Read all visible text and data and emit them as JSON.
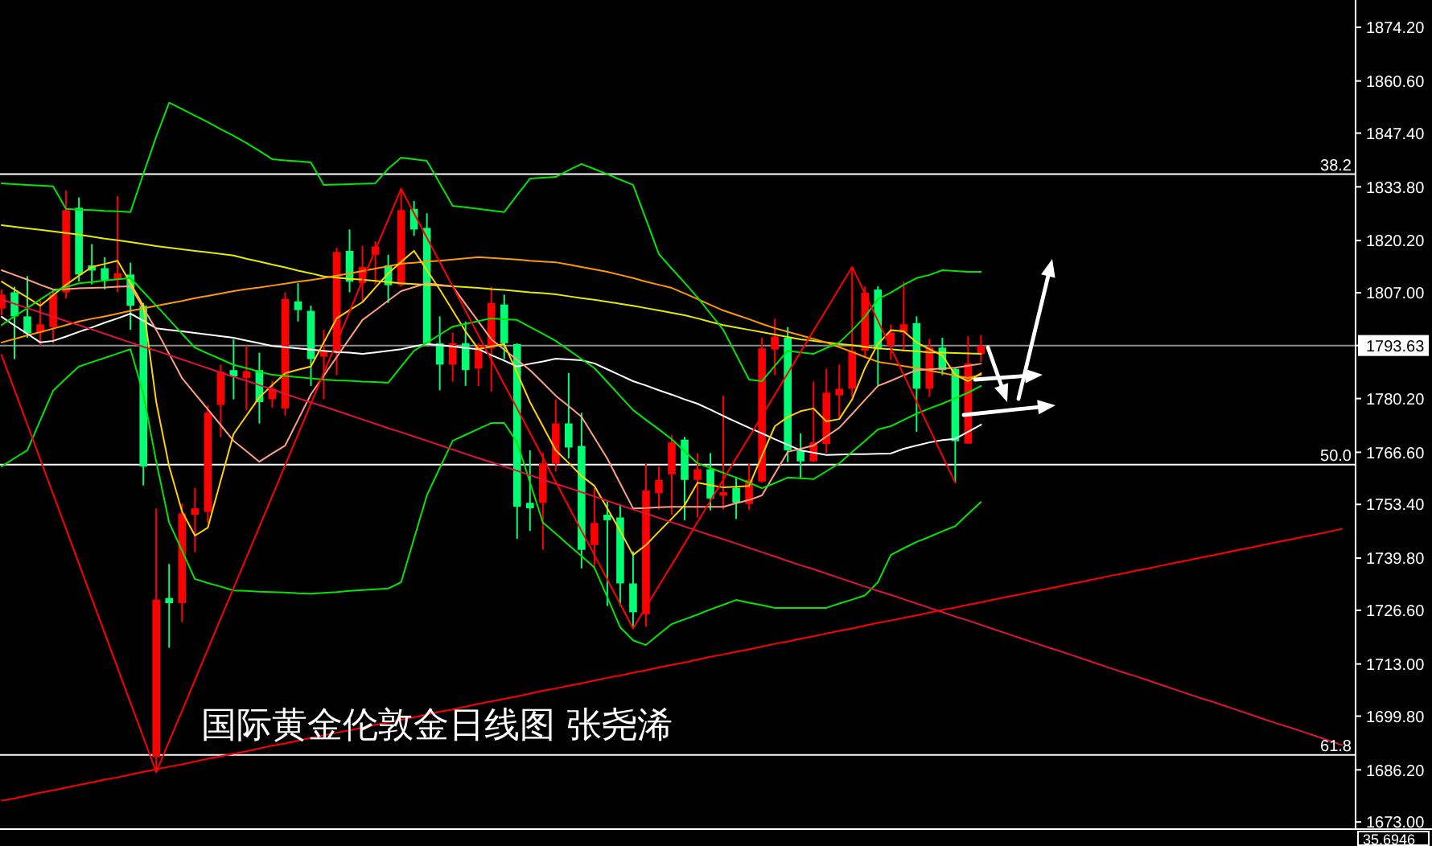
{
  "chart_data": {
    "type": "candlestick",
    "title": "国际黄金伦敦金日线图 张尧浠",
    "categories": [
      null,
      null,
      null,
      null,
      null,
      null,
      null,
      null,
      null,
      null,
      null,
      null,
      null,
      null,
      null,
      null,
      null,
      null,
      null,
      null,
      null,
      null,
      null,
      null,
      null,
      null,
      null,
      null,
      null,
      null,
      null,
      null,
      null,
      null,
      null,
      null,
      null,
      null,
      null,
      null,
      null,
      null,
      null,
      null,
      null,
      null,
      null,
      null,
      null,
      null,
      null,
      null,
      null,
      null,
      null,
      null,
      null,
      null,
      null,
      null,
      null,
      null,
      null,
      null,
      null,
      null,
      null,
      null,
      null,
      null,
      null,
      null,
      null,
      null,
      null,
      null,
      null,
      null,
      null,
      null,
      null,
      null,
      null,
      null,
      null,
      null,
      null,
      null,
      null,
      null,
      null,
      null,
      null,
      null,
      null,
      null,
      null,
      null,
      null,
      null,
      null,
      null,
      null,
      null,
      null
    ],
    "ylim": [
      1671.4,
      1881.1
    ],
    "tick_labels": "y",
    "yticks": [
      {
        "value": 1874.2,
        "label": "1874.20"
      },
      {
        "value": 1860.6,
        "label": "1860.60"
      },
      {
        "value": 1847.4,
        "label": "1847.40"
      },
      {
        "value": 1833.8,
        "label": "1833.80"
      },
      {
        "value": 1820.2,
        "label": "1820.20"
      },
      {
        "value": 1807.0,
        "label": "1807.00"
      },
      {
        "value": 1793.63,
        "label": "1793.63"
      },
      {
        "value": 1780.2,
        "label": "1780.20"
      },
      {
        "value": 1766.6,
        "label": "1766.60"
      },
      {
        "value": 1753.4,
        "label": "1753.40"
      },
      {
        "value": 1739.8,
        "label": "1739.80"
      },
      {
        "value": 1726.6,
        "label": "1726.60"
      },
      {
        "value": 1713.0,
        "label": "1713.00"
      },
      {
        "value": 1699.8,
        "label": "1699.80"
      },
      {
        "value": 1686.2,
        "label": "1686.20"
      },
      {
        "value": 1673.0,
        "label": "1673.00"
      }
    ],
    "ohlc": [
      [
        1803.0,
        1807.8,
        1801.3,
        1806.5
      ],
      [
        1807.1,
        1808.5,
        1790.2,
        1801.0
      ],
      [
        1801.0,
        1811.2,
        1795.6,
        1796.7
      ],
      [
        1796.9,
        1805.1,
        1793.6,
        1799.0
      ],
      [
        1798.3,
        1807.8,
        1794.2,
        1806.5
      ],
      [
        1807.1,
        1832.9,
        1805.5,
        1827.9
      ],
      [
        1828.5,
        1831.1,
        1809.8,
        1811.6
      ],
      [
        1813.9,
        1819.3,
        1809.1,
        1812.6
      ],
      [
        1813.2,
        1816.0,
        1807.8,
        1810.2
      ],
      [
        1810.2,
        1831.5,
        1807.1,
        1811.9
      ],
      [
        1811.6,
        1814.6,
        1797.6,
        1803.7
      ],
      [
        1803.7,
        1804.4,
        1758.2,
        1763.0
      ],
      [
        1689.4,
        1752.4,
        1685.6,
        1729.3
      ],
      [
        1729.7,
        1738.3,
        1717.1,
        1728.4
      ],
      [
        1728.4,
        1753.6,
        1723.6,
        1751.1
      ],
      [
        1750.8,
        1757.6,
        1741.3,
        1752.4
      ],
      [
        1751.5,
        1778.6,
        1748.7,
        1776.6
      ],
      [
        1778.6,
        1788.8,
        1770.4,
        1787.0
      ],
      [
        1787.4,
        1795.2,
        1780.0,
        1785.8
      ],
      [
        1785.4,
        1793.6,
        1777.3,
        1787.1
      ],
      [
        1787.4,
        1791.8,
        1773.9,
        1779.3
      ],
      [
        1780.0,
        1784.7,
        1777.9,
        1782.7
      ],
      [
        1777.7,
        1807.1,
        1775.9,
        1805.4
      ],
      [
        1804.8,
        1809.4,
        1799.7,
        1802.6
      ],
      [
        1802.4,
        1803.7,
        1783.4,
        1790.2
      ],
      [
        1790.8,
        1797.6,
        1780.0,
        1792.2
      ],
      [
        1792.2,
        1818.4,
        1786.1,
        1817.3
      ],
      [
        1817.6,
        1823.0,
        1807.1,
        1809.8
      ],
      [
        1809.4,
        1818.9,
        1804.8,
        1813.5
      ],
      [
        1816.6,
        1820.0,
        1809.1,
        1818.7
      ],
      [
        1813.9,
        1816.6,
        1804.4,
        1808.9
      ],
      [
        1808.9,
        1833.3,
        1808.5,
        1827.9
      ],
      [
        1828.2,
        1830.2,
        1821.4,
        1823.0
      ],
      [
        1823.4,
        1827.1,
        1793.6,
        1794.2
      ],
      [
        1794.2,
        1801.0,
        1782.3,
        1788.8
      ],
      [
        1788.8,
        1796.9,
        1784.5,
        1794.2
      ],
      [
        1794.2,
        1799.7,
        1783.4,
        1787.4
      ],
      [
        1787.8,
        1794.2,
        1783.4,
        1793.6
      ],
      [
        1792.9,
        1808.5,
        1782.0,
        1804.4
      ],
      [
        1804.0,
        1806.5,
        1790.2,
        1794.2
      ],
      [
        1794.0,
        1794.2,
        1744.7,
        1752.8
      ],
      [
        1753.8,
        1767.1,
        1746.7,
        1752.4
      ],
      [
        1753.8,
        1766.4,
        1741.9,
        1763.7
      ],
      [
        1763.7,
        1780.0,
        1761.7,
        1773.9
      ],
      [
        1773.9,
        1786.7,
        1765.0,
        1767.8
      ],
      [
        1768.2,
        1776.6,
        1737.2,
        1741.9
      ],
      [
        1743.1,
        1757.6,
        1737.2,
        1748.7
      ],
      [
        1750.8,
        1754.2,
        1727.7,
        1749.4
      ],
      [
        1750.1,
        1753.5,
        1727.7,
        1733.4
      ],
      [
        1733.4,
        1741.5,
        1722.0,
        1726.1
      ],
      [
        1725.6,
        1763.7,
        1722.4,
        1756.9
      ],
      [
        1756.2,
        1763.0,
        1752.1,
        1759.6
      ],
      [
        1761.0,
        1770.9,
        1750.8,
        1769.1
      ],
      [
        1769.8,
        1770.5,
        1749.4,
        1759.6
      ],
      [
        1759.6,
        1766.4,
        1750.1,
        1762.3
      ],
      [
        1762.3,
        1766.4,
        1751.9,
        1754.9
      ],
      [
        1755.6,
        1780.9,
        1752.1,
        1756.5
      ],
      [
        1757.6,
        1760.3,
        1749.7,
        1753.8
      ],
      [
        1753.5,
        1763.8,
        1752.0,
        1759.6
      ],
      [
        1759.2,
        1795.6,
        1758.9,
        1792.9
      ],
      [
        1792.6,
        1800.4,
        1786.1,
        1795.9
      ],
      [
        1795.6,
        1798.3,
        1764.1,
        1767.1
      ],
      [
        1767.1,
        1771.4,
        1760.0,
        1764.3
      ],
      [
        1764.3,
        1784.5,
        1764.1,
        1769.1
      ],
      [
        1768.7,
        1787.7,
        1766.4,
        1781.7
      ],
      [
        1781.0,
        1788.8,
        1775.2,
        1782.7
      ],
      [
        1782.7,
        1813.5,
        1780.6,
        1792.2
      ],
      [
        1792.3,
        1808.6,
        1790.7,
        1807.0
      ],
      [
        1807.8,
        1808.6,
        1783.4,
        1792.7
      ],
      [
        1793.6,
        1799.0,
        1790.0,
        1796.9
      ],
      [
        1796.9,
        1809.8,
        1792.2,
        1799.0
      ],
      [
        1799.3,
        1801.0,
        1771.8,
        1782.7
      ],
      [
        1782.7,
        1795.3,
        1780.6,
        1793.1
      ],
      [
        1793.1,
        1795.6,
        1786.1,
        1787.4
      ],
      [
        1787.7,
        1788.1,
        1758.9,
        1769.4
      ],
      [
        1768.8,
        1796.0,
        1768.8,
        1789.1
      ],
      [
        1791.5,
        1796.3,
        1789.5,
        1793.6
      ],
      null,
      null,
      null,
      null,
      null,
      null,
      null,
      null,
      null,
      null,
      null,
      null,
      null,
      null,
      null,
      null,
      null,
      null,
      null,
      null,
      null,
      null,
      null,
      null,
      null,
      null,
      null,
      null
    ],
    "colors": [
      "#ff0000",
      "#00ff73",
      "#00ff73",
      "#ff0000",
      "#ff0000",
      "#ff0000",
      "#00ff73",
      "#00ff73",
      "#00ff73",
      "#ff0000",
      "#00ff73",
      "#00ff73",
      "#ff0000",
      "#00ff73",
      "#ff0000",
      "#ff0000",
      "#ff0000",
      "#ff0000",
      "#00ff73",
      "#ff0000",
      "#00ff73",
      "#ff0000",
      "#ff0000",
      "#00ff73",
      "#00ff73",
      "#ff0000",
      "#ff0000",
      "#00ff73",
      "#ff0000",
      "#ff0000",
      "#00ff73",
      "#ff0000",
      "#00ff73",
      "#00ff73",
      "#00ff73",
      "#ff0000",
      "#00ff73",
      "#ff0000",
      "#ff0000",
      "#00ff73",
      "#00ff73",
      "#00ff73",
      "#ff0000",
      "#ff0000",
      "#00ff73",
      "#00ff73",
      "#ff0000",
      "#00ff73",
      "#00ff73",
      "#00ff73",
      "#ff0000",
      "#ff0000",
      "#ff0000",
      "#00ff73",
      "#ff0000",
      "#00ff73",
      "#ff0000",
      "#00ff73",
      "#ff0000",
      "#ff0000",
      "#ff0000",
      "#00ff73",
      "#00ff73",
      "#ff0000",
      "#ff0000",
      "#ff0000",
      "#ff0000",
      "#ff0000",
      "#00ff73",
      "#ff0000",
      "#ff0000",
      "#00ff73",
      "#ff0000",
      "#00ff73",
      "#00ff73",
      "#ff0000",
      "#ff0000",
      null,
      null,
      null,
      null,
      null,
      null,
      null,
      null,
      null,
      null,
      null,
      null,
      null,
      null,
      null,
      null,
      null,
      null,
      null,
      null,
      null,
      null,
      null,
      null,
      null,
      null,
      null,
      null
    ],
    "series": [
      {
        "type": "line",
        "color": "#e8e800",
        "values": [
          1824.1,
          1823.7,
          1823.3,
          1822.9,
          1822.5,
          1822.1,
          1821.7,
          1821.2,
          1820.7,
          1820.3,
          1819.8,
          1819.3,
          1818.8,
          1818.4,
          1818.0,
          1817.6,
          1817.2,
          1816.8,
          1816.4,
          1815.6,
          1814.9,
          1814.1,
          1813.4,
          1812.6,
          1811.9,
          1811.1,
          1810.8,
          1810.5,
          1810.3,
          1810.0,
          1809.7,
          1809.4,
          1809.2,
          1809.0,
          1808.8,
          1808.6,
          1808.4,
          1808.2,
          1807.9,
          1807.7,
          1807.4,
          1807.1,
          1806.9,
          1806.6,
          1806.1,
          1805.6,
          1805.2,
          1804.7,
          1804.2,
          1803.7,
          1803.1,
          1802.5,
          1801.9,
          1801.3,
          1800.5,
          1799.6,
          1798.8,
          1798.2,
          1797.6,
          1797.0,
          1796.4,
          1795.8,
          1795.2,
          1794.8,
          1794.4,
          1794.0,
          1793.7,
          1793.3,
          1792.9,
          1792.7,
          1792.4,
          1792.2,
          1791.9,
          1791.8,
          1791.7,
          1791.6,
          1791.5,
          null,
          null,
          null,
          null,
          null,
          null,
          null,
          null,
          null,
          null,
          null,
          null,
          null,
          null,
          null,
          null,
          null,
          null,
          null,
          null,
          null,
          null,
          null,
          null,
          null,
          null,
          null,
          null
        ]
      },
      {
        "type": "line",
        "color": "#ff9900",
        "values": [
          1794.4,
          1795.3,
          1796.2,
          1797.0,
          1797.9,
          1798.8,
          1799.7,
          1800.4,
          1801.0,
          1801.7,
          1802.4,
          1803.0,
          1803.7,
          1804.3,
          1804.9,
          1805.6,
          1806.2,
          1806.8,
          1807.4,
          1807.9,
          1808.3,
          1808.8,
          1809.3,
          1809.8,
          1810.2,
          1810.7,
          1811.3,
          1811.9,
          1812.5,
          1813.1,
          1813.7,
          1814.3,
          1814.6,
          1814.9,
          1815.1,
          1815.4,
          1815.7,
          1816.0,
          1815.8,
          1815.6,
          1815.4,
          1815.1,
          1814.9,
          1814.7,
          1814.1,
          1813.5,
          1812.9,
          1812.3,
          1811.5,
          1810.7,
          1809.8,
          1809.0,
          1808.2,
          1806.8,
          1805.4,
          1803.9,
          1802.5,
          1801.4,
          1800.3,
          1799.1,
          1798.0,
          1797.1,
          1796.2,
          1795.3,
          1794.4,
          1793.2,
          1792.0,
          1790.7,
          1789.5,
          1789.0,
          1788.4,
          1787.9,
          1787.3,
          1786.7,
          1786.0,
          1785.4,
          1786.2,
          null,
          null,
          null,
          null,
          null,
          null,
          null,
          null,
          null,
          null,
          null,
          null,
          null,
          null,
          null,
          null,
          null,
          null,
          null,
          null,
          null,
          null,
          null,
          null,
          null,
          null,
          null,
          null
        ]
      },
      {
        "type": "line",
        "color": "#ffffff",
        "values": [
          1800.9,
          1798.7,
          1796.6,
          1794.4,
          1794.8,
          1795.9,
          1797.1,
          1798.2,
          1799.4,
          1800.5,
          1801.7,
          1799.9,
          1798.0,
          1797.6,
          1797.2,
          1796.8,
          1796.4,
          1796.0,
          1795.6,
          1794.9,
          1794.2,
          1793.5,
          1793.2,
          1792.9,
          1792.6,
          1792.3,
          1792.0,
          1791.8,
          1791.5,
          1791.9,
          1792.3,
          1792.7,
          1793.4,
          1794.0,
          1793.7,
          1793.4,
          1793.0,
          1792.7,
          1791.2,
          1789.8,
          1788.3,
          1789.0,
          1789.6,
          1790.3,
          1790.1,
          1789.9,
          1789.1,
          1787.6,
          1786.1,
          1784.6,
          1783.5,
          1782.3,
          1781.2,
          1780.0,
          1778.9,
          1777.4,
          1775.8,
          1774.3,
          1772.8,
          1771.4,
          1769.9,
          1768.5,
          1767.1,
          1766.5,
          1765.9,
          1766.0,
          1766.1,
          1766.1,
          1766.2,
          1766.3,
          1767.5,
          1768.3,
          1769.1,
          1769.7,
          1770.0,
          1771.8,
          1773.6,
          null,
          null,
          null,
          null,
          null,
          null,
          null,
          null,
          null,
          null,
          null,
          null,
          null,
          null,
          null,
          null,
          null,
          null,
          null,
          null,
          null,
          null,
          null,
          null,
          null,
          null,
          null,
          null
        ]
      },
      {
        "type": "line",
        "color": "#ffa080",
        "values": [
          1812.7,
          1811.5,
          1810.3,
          1809.0,
          1807.8,
          1807.9,
          1808.1,
          1808.2,
          1808.3,
          1808.5,
          1808.6,
          1803.1,
          1797.6,
          1791.5,
          1785.4,
          1781.4,
          1777.5,
          1773.5,
          1769.5,
          1766.9,
          1764.2,
          1766.3,
          1768.3,
          1774.8,
          1781.3,
          1786.0,
          1790.7,
          1795.4,
          1800.1,
          1802.5,
          1805.0,
          1807.4,
          1808.4,
          1809.4,
          1809.0,
          1808.6,
          1804.1,
          1799.7,
          1795.2,
          1792.6,
          1790.0,
          1787.4,
          1784.2,
          1780.9,
          1778.3,
          1775.6,
          1770.3,
          1765.0,
          1758.7,
          1752.4,
          1752.5,
          1752.7,
          1752.8,
          1752.8,
          1752.8,
          1752.8,
          1752.8,
          1753.7,
          1754.5,
          1755.7,
          1761.2,
          1766.7,
          1767.5,
          1768.3,
          1770.6,
          1772.8,
          1776.3,
          1779.9,
          1783.4,
          1784.7,
          1786.1,
          1787.4,
          1787.6,
          1787.8,
          1788.0,
          1788.5,
          1789.0,
          null,
          null,
          null,
          null,
          null,
          null,
          null,
          null,
          null,
          null,
          null,
          null,
          null,
          null,
          null,
          null,
          null,
          null,
          null,
          null,
          null,
          null,
          null,
          null,
          null,
          null,
          null,
          null
        ]
      },
      {
        "type": "line",
        "color": "#ffd200",
        "values": [
          1809.8,
          1807.8,
          1805.8,
          1803.7,
          1806.4,
          1809.0,
          1811.3,
          1813.5,
          1814.3,
          1815.1,
          1809.4,
          1803.7,
          1779.3,
          1763.0,
          1751.6,
          1745.5,
          1747.5,
          1759.4,
          1771.2,
          1775.9,
          1780.5,
          1783.6,
          1786.6,
          1787.5,
          1788.3,
          1794.4,
          1800.5,
          1802.6,
          1804.6,
          1808.3,
          1811.9,
          1814.8,
          1817.6,
          1812.7,
          1807.8,
          1802.5,
          1797.2,
          1792.7,
          1793.4,
          1794.0,
          1786.7,
          1779.3,
          1773.2,
          1767.1,
          1763.9,
          1760.6,
          1758.1,
          1752.4,
          1746.7,
          1740.6,
          1743.1,
          1746.5,
          1749.8,
          1753.2,
          1758.9,
          1758.3,
          1757.7,
          1757.9,
          1758.1,
          1765.7,
          1773.2,
          1775.5,
          1777.0,
          1777.7,
          1774.4,
          1775.0,
          1780.0,
          1788.0,
          1794.0,
          1797.5,
          1797.2,
          1794.4,
          1792.7,
          1791.1,
          1786.2,
          1784.6,
          1786.6,
          null,
          null,
          null,
          null,
          null,
          null,
          null,
          null,
          null,
          null,
          null,
          null,
          null,
          null,
          null,
          null,
          null,
          null,
          null,
          null,
          null,
          null,
          null,
          null,
          null,
          null,
          null,
          null
        ]
      },
      {
        "type": "line",
        "color": "#00e600",
        "values": [
          1834.7,
          1834.5,
          1834.3,
          1834.1,
          1833.9,
          1828.2,
          1828.0,
          1827.9,
          1827.7,
          1827.6,
          1827.4,
          1837.1,
          1846.5,
          1855.1,
          1853.5,
          1851.8,
          1850.2,
          1848.4,
          1846.7,
          1844.9,
          1842.9,
          1840.8,
          1840.5,
          1840.3,
          1840.0,
          1834.3,
          1834.4,
          1834.5,
          1834.6,
          1834.7,
          1838.4,
          1841.2,
          1840.8,
          1840.4,
          1834.7,
          1829.0,
          1828.6,
          1828.2,
          1827.8,
          1827.4,
          1831.7,
          1835.9,
          1836.1,
          1836.3,
          1838.0,
          1839.6,
          1838.3,
          1837.0,
          1835.6,
          1834.3,
          1825.6,
          1816.8,
          1813.1,
          1809.5,
          1805.8,
          1801.7,
          1797.6,
          1791.3,
          1785.0,
          1784.6,
          1788.5,
          1792.3,
          1791.9,
          1791.5,
          1793.0,
          1794.4,
          1797.5,
          1800.9,
          1805.4,
          1807.0,
          1809.0,
          1810.7,
          1811.5,
          1812.7,
          1812.5,
          1812.3,
          1812.3,
          null,
          null,
          null,
          null,
          null,
          null,
          null,
          null,
          null,
          null,
          null,
          null,
          null,
          null,
          null,
          null,
          null,
          null,
          null,
          null,
          null,
          null,
          null,
          null,
          null,
          null,
          null,
          null
        ]
      },
      {
        "type": "line",
        "color": "#00e600",
        "values": [
          1763.0,
          1765.1,
          1767.1,
          1774.7,
          1782.2,
          1785.3,
          1788.3,
          1789.4,
          1790.5,
          1791.6,
          1792.7,
          1781.3,
          1764.2,
          1748.8,
          1741.7,
          1734.5,
          1733.5,
          1732.6,
          1731.6,
          1731.5,
          1731.3,
          1731.2,
          1731.1,
          1730.9,
          1730.8,
          1731.0,
          1731.2,
          1731.5,
          1731.7,
          1731.9,
          1732.1,
          1733.7,
          1744.7,
          1755.7,
          1762.6,
          1769.5,
          1771.0,
          1772.5,
          1774.0,
          1774.0,
          1769.1,
          1759.0,
          1748.8,
          1746.0,
          1743.1,
          1740.3,
          1737.4,
          1729.9,
          1722.3,
          1719.0,
          1717.8,
          1720.5,
          1723.1,
          1724.3,
          1725.5,
          1726.8,
          1728.0,
          1729.2,
          1728.5,
          1727.9,
          1727.2,
          1727.2,
          1727.2,
          1727.2,
          1727.2,
          1728.3,
          1729.3,
          1730.4,
          1733.7,
          1740.6,
          1742.3,
          1743.9,
          1745.2,
          1746.6,
          1747.9,
          1751.0,
          1754.0,
          null,
          null,
          null,
          null,
          null,
          null,
          null,
          null,
          null,
          null,
          null,
          null,
          null,
          null,
          null,
          null,
          null,
          null,
          null,
          null,
          null,
          null,
          null,
          null,
          null,
          null,
          null,
          null
        ]
      },
      {
        "type": "line",
        "color": "#00e600",
        "values": [
          1798.8,
          1801.0,
          1803.1,
          1805.3,
          1807.4,
          1808.4,
          1809.4,
          1809.7,
          1810.1,
          1810.4,
          1810.7,
          1807.2,
          1803.7,
          1800.2,
          1796.6,
          1793.1,
          1791.6,
          1790.2,
          1788.7,
          1787.9,
          1787.0,
          1786.2,
          1785.9,
          1785.6,
          1785.3,
          1785.0,
          1784.8,
          1784.7,
          1784.5,
          1784.4,
          1784.2,
          1788.3,
          1792.3,
          1794.3,
          1796.4,
          1798.4,
          1799.1,
          1799.8,
          1800.5,
          1800.3,
          1800.1,
          1798.3,
          1796.6,
          1794.8,
          1792.5,
          1790.2,
          1787.9,
          1784.4,
          1780.8,
          1777.3,
          1774.8,
          1772.4,
          1769.9,
          1766.9,
          1763.8,
          1762.6,
          1761.4,
          1760.2,
          1758.9,
          1757.5,
          1758.8,
          1760.2,
          1760.0,
          1759.8,
          1761.8,
          1763.8,
          1766.7,
          1769.5,
          1772.4,
          1773.2,
          1774.8,
          1776.4,
          1777.7,
          1778.9,
          1780.3,
          1781.7,
          1783.4,
          null,
          null,
          null,
          null,
          null,
          null,
          null,
          null,
          null,
          null,
          null,
          null,
          null,
          null,
          null,
          null,
          null,
          null,
          null,
          null,
          null,
          null,
          null,
          null,
          null,
          null,
          null,
          null
        ]
      },
      {
        "type": "line",
        "color": "#dc143c",
        "values": [
          1805.3,
          1804.2,
          1803.1,
          1802.0,
          1800.9,
          1799.8,
          1798.8,
          1797.7,
          1796.6,
          1795.5,
          1794.4,
          1793.3,
          1792.3,
          1791.2,
          1790.1,
          1789.0,
          1787.9,
          1786.8,
          1785.7,
          1784.7,
          1783.6,
          1782.5,
          1781.4,
          1780.3,
          1779.2,
          1778.2,
          1777.1,
          1776.0,
          1774.9,
          1773.8,
          1772.7,
          1771.7,
          1770.6,
          1769.5,
          1768.4,
          1767.3,
          1766.2,
          1765.1,
          1764.1,
          1763.0,
          1761.9,
          1760.8,
          1759.7,
          1758.6,
          1757.6,
          1756.5,
          1755.4,
          1754.3,
          1753.2,
          1752.1,
          1751.1,
          1750.0,
          1748.9,
          1747.8,
          1746.7,
          1745.6,
          1744.6,
          1743.5,
          1742.4,
          1741.3,
          1740.2,
          1739.1,
          1738.0,
          1737.0,
          1735.9,
          1734.8,
          1733.7,
          1732.6,
          1731.5,
          1730.5,
          1729.4,
          1728.3,
          1727.2,
          1726.1,
          1725.0,
          1724.0,
          1722.9,
          1721.8,
          1720.7,
          1719.6,
          1718.5,
          1717.4,
          1716.4,
          1715.3,
          1714.2,
          1713.1,
          1712.0,
          1710.9,
          1709.9,
          1708.8,
          1707.7,
          1706.6,
          1705.5,
          1704.4,
          1703.4,
          1702.3,
          1701.2,
          1700.1,
          1699.0,
          1697.9,
          1696.9,
          1695.8,
          1694.7,
          1693.6,
          1692.5
        ]
      },
      {
        "type": "line",
        "color": "#ff0000",
        "values": [
          1678.4,
          1679.0,
          1679.7,
          1680.4,
          1681.0,
          1681.7,
          1682.4,
          1683.0,
          1683.7,
          1684.3,
          1685.0,
          1685.7,
          1686.3,
          1687.0,
          1687.6,
          1688.3,
          1689.0,
          1689.6,
          1690.3,
          1690.9,
          1691.6,
          1692.3,
          1692.9,
          1693.6,
          1694.3,
          1694.9,
          1695.6,
          1696.2,
          1696.9,
          1697.6,
          1698.2,
          1698.9,
          1699.5,
          1700.2,
          1700.9,
          1701.5,
          1702.2,
          1702.9,
          1703.5,
          1704.2,
          1704.8,
          1705.5,
          1706.2,
          1706.8,
          1707.5,
          1708.1,
          1708.8,
          1709.5,
          1710.1,
          1710.8,
          1711.4,
          1712.1,
          1712.8,
          1713.4,
          1714.1,
          1714.8,
          1715.4,
          1716.1,
          1716.7,
          1717.4,
          1718.1,
          1718.7,
          1719.4,
          1720.0,
          1720.7,
          1721.4,
          1722.0,
          1722.7,
          1723.4,
          1724.0,
          1724.7,
          1725.3,
          1726.0,
          1726.7,
          1727.3,
          1728.0,
          1728.6,
          1729.3,
          1730.0,
          1730.6,
          1731.3,
          1731.9,
          1732.6,
          1733.3,
          1733.9,
          1734.6,
          1735.3,
          1735.9,
          1736.6,
          1737.2,
          1737.9,
          1738.6,
          1739.2,
          1739.9,
          1740.5,
          1741.2,
          1741.9,
          1742.5,
          1743.2,
          1743.9,
          1744.5,
          1745.2,
          1745.8,
          1746.5,
          1747.2
        ]
      },
      {
        "type": "line",
        "color": "#ff0000",
        "values": [
          1791.2,
          1782.4,
          1773.6,
          1764.8,
          1756.0,
          1747.2,
          1738.4,
          1729.6,
          1720.8,
          1712.0,
          1703.2,
          1694.4,
          1685.6,
          1693.4,
          1701.1,
          1708.9,
          1716.7,
          1724.5,
          1732.2,
          1740.0,
          1747.7,
          1755.5,
          1763.3,
          1771.1,
          1778.9,
          1786.7,
          1794.4,
          1802.2,
          1810.0,
          1817.8,
          1825.5,
          1833.3,
          1827.1,
          1820.9,
          1814.8,
          1808.6,
          1802.4,
          1796.2,
          1790.0,
          1783.8,
          1777.7,
          1771.5,
          1765.3,
          1759.1,
          1752.9,
          1746.7,
          1740.6,
          1734.4,
          1728.2,
          1722.0,
          1727.4,
          1732.8,
          1738.1,
          1743.5,
          1748.9,
          1754.3,
          1759.7,
          1765.1,
          1770.4,
          1775.8,
          1781.2,
          1786.6,
          1792.0,
          1797.4,
          1802.7,
          1808.1,
          1813.5,
          1806.7,
          1799.9,
          1793.0,
          1786.2,
          1779.4,
          1772.6,
          1765.7,
          1758.9,
          null,
          null,
          null,
          null,
          null,
          null,
          null,
          null,
          null,
          null,
          null,
          null,
          null,
          null,
          null,
          null,
          null,
          null,
          null,
          null,
          null,
          null,
          null,
          null,
          null,
          null,
          null,
          null,
          null,
          null
        ]
      }
    ],
    "ref_lines": [
      {
        "axis": "y",
        "value": 1837.0,
        "color": "#ffffff"
      },
      {
        "axis": "y",
        "value": 1763.5,
        "color": "#ffffff"
      },
      {
        "axis": "y",
        "value": 1690.0,
        "color": "#ffffff"
      },
      {
        "axis": "y",
        "value": 1793.63,
        "color": "#8c8c8c"
      }
    ],
    "annotations": [
      {
        "text": "38.2",
        "y": 1837.0
      },
      {
        "text": "50.0",
        "y": 1763.5
      },
      {
        "text": "61.8",
        "y": 1690.0
      },
      "35.6946"
    ]
  }
}
